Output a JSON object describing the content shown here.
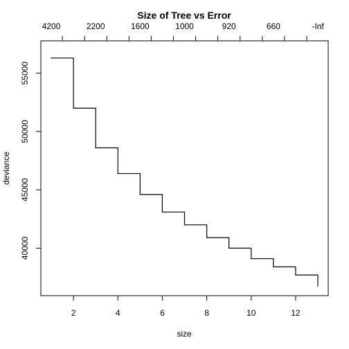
{
  "chart_data": {
    "type": "line",
    "title": "Size of Tree vs Error",
    "xlabel": "size",
    "ylabel": "deviance",
    "xlim": [
      1,
      13
    ],
    "ylim": [
      36700,
      57000
    ],
    "grid": false,
    "legend": "none",
    "x": [
      1,
      2,
      3,
      4,
      5,
      6,
      7,
      8,
      9,
      10,
      11,
      12,
      13
    ],
    "y": [
      56300,
      52000,
      48600,
      46400,
      44600,
      43100,
      42000,
      40900,
      40000,
      39100,
      38400,
      37700,
      37200
    ],
    "x_ticks": [
      2,
      4,
      6,
      8,
      10,
      12
    ],
    "x_tick_labels": [
      "2",
      "4",
      "6",
      "8",
      "10",
      "12"
    ],
    "y_ticks": [
      40000,
      45000,
      50000,
      55000
    ],
    "y_tick_labels": [
      "40000",
      "45000",
      "50000",
      "55000"
    ],
    "top_axis": {
      "ticks": [
        1.5,
        2.5,
        3.5,
        4.5,
        5.5,
        6.5,
        7.5,
        8.5,
        9.5,
        10.5,
        11.5,
        12.5
      ],
      "labeled_ticks": [
        1,
        3,
        5,
        7,
        9,
        11,
        13
      ],
      "labels": [
        "4200",
        "2200",
        "1600",
        "1000",
        "920",
        "660",
        "-Inf"
      ]
    }
  }
}
